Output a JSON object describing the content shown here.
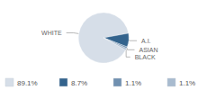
{
  "chart_data": {
    "type": "pie",
    "categories": [
      "WHITE",
      "A.I.",
      "ASIAN",
      "BLACK"
    ],
    "values": [
      89.1,
      8.7,
      1.1,
      1.1
    ],
    "value_labels": [
      "89.1%",
      "8.7%",
      "1.1%",
      "1.1%"
    ],
    "colors": [
      "#d6dee8",
      "#33638d",
      "#7090b0",
      "#a8bbcf"
    ],
    "legend": "bottom"
  }
}
